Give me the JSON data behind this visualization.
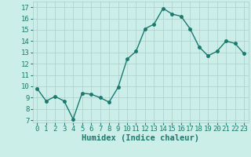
{
  "x": [
    0,
    1,
    2,
    3,
    4,
    5,
    6,
    7,
    8,
    9,
    10,
    11,
    12,
    13,
    14,
    15,
    16,
    17,
    18,
    19,
    20,
    21,
    22,
    23
  ],
  "y": [
    9.8,
    8.7,
    9.1,
    8.7,
    7.1,
    9.4,
    9.3,
    9.0,
    8.6,
    9.9,
    12.4,
    13.1,
    15.1,
    15.5,
    16.9,
    16.4,
    16.2,
    15.1,
    13.5,
    12.7,
    13.1,
    14.0,
    13.8,
    12.9
  ],
  "line_color": "#1a7a6e",
  "marker": "o",
  "marker_size": 2.5,
  "bg_color": "#cceee8",
  "grid_color": "#aacccc",
  "xlabel": "Humidex (Indice chaleur)",
  "ylabel_ticks": [
    7,
    8,
    9,
    10,
    11,
    12,
    13,
    14,
    15,
    16,
    17
  ],
  "ylim": [
    6.8,
    17.5
  ],
  "xlim": [
    -0.5,
    23.5
  ],
  "xticks": [
    0,
    1,
    2,
    3,
    4,
    5,
    6,
    7,
    8,
    9,
    10,
    11,
    12,
    13,
    14,
    15,
    16,
    17,
    18,
    19,
    20,
    21,
    22,
    23
  ],
  "xlabel_fontsize": 7.5,
  "tick_fontsize": 6.5,
  "line_width": 1.0
}
